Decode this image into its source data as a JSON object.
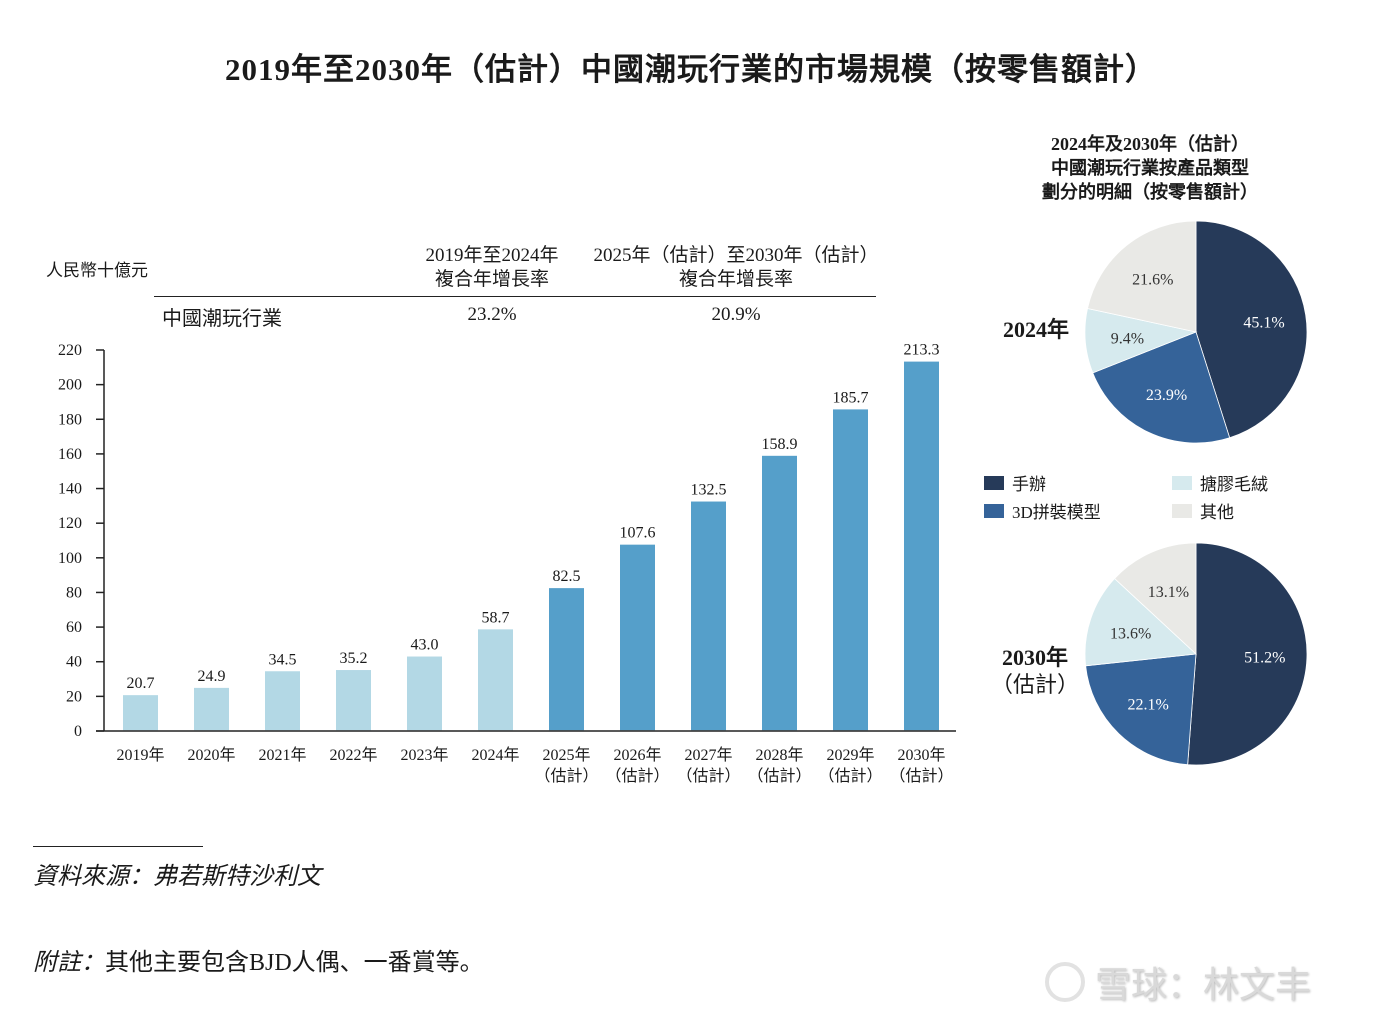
{
  "title": "2019年至2030年（估計）中國潮玩行業的市場規模（按零售額計）",
  "unit_label": "人民幣十億元",
  "cagr": {
    "header_1": [
      "2019年至2024年",
      "複合年增長率"
    ],
    "header_2": [
      "2025年（估計）至2030年（估計）",
      "複合年增長率"
    ],
    "row_label": "中國潮玩行業",
    "value_1": "23.2%",
    "value_2": "20.9%"
  },
  "colors": {
    "historical_bar": "#b3d8e5",
    "forecast_bar": "#559fca",
    "figurines": "#263a59",
    "model_3d": "#356399",
    "plush": "#d6eaee",
    "others": "#e9e9e6"
  },
  "chart_data": [
    {
      "type": "bar",
      "title": "2019年至2030年（估計）中國潮玩行業的市場規模（按零售額計）",
      "xlabel": "",
      "ylabel": "人民幣十億元",
      "ylim": [
        0,
        220
      ],
      "yticks": [
        0,
        20,
        40,
        60,
        80,
        100,
        120,
        140,
        160,
        180,
        200,
        220
      ],
      "grid": false,
      "categories": [
        "2019年",
        "2020年",
        "2021年",
        "2022年",
        "2023年",
        "2024年",
        "2025年\n（估計）",
        "2026年\n（估計）",
        "2027年\n（估計）",
        "2028年\n（估計）",
        "2029年\n（估計）",
        "2030年\n（估計）"
      ],
      "category_lines": [
        [
          "2019年"
        ],
        [
          "2020年"
        ],
        [
          "2021年"
        ],
        [
          "2022年"
        ],
        [
          "2023年"
        ],
        [
          "2024年"
        ],
        [
          "2025年",
          "（估計）"
        ],
        [
          "2026年",
          "（估計）"
        ],
        [
          "2027年",
          "（估計）"
        ],
        [
          "2028年",
          "（估計）"
        ],
        [
          "2029年",
          "（估計）"
        ],
        [
          "2030年",
          "（估計）"
        ]
      ],
      "values": [
        20.7,
        24.9,
        34.5,
        35.2,
        43.0,
        58.7,
        82.5,
        107.6,
        132.5,
        158.9,
        185.7,
        213.3
      ],
      "value_labels": [
        "20.7",
        "24.9",
        "34.5",
        "35.2",
        "43.0",
        "58.7",
        "82.5",
        "107.6",
        "132.5",
        "158.9",
        "185.7",
        "213.3"
      ],
      "forecast": [
        false,
        false,
        false,
        false,
        false,
        false,
        true,
        true,
        true,
        true,
        true,
        true
      ]
    },
    {
      "type": "pie",
      "title": "2024年及2030年（估計）中國潮玩行業按產品類型劃分的明細（按零售額計）",
      "title_lines": [
        "2024年及2030年（估計）",
        "中國潮玩行業按產品類型",
        "劃分的明細（按零售額計）"
      ],
      "legend": [
        "手辦",
        "3D拼裝模型",
        "搪膠毛絨",
        "其他"
      ],
      "legend_placement": "between-pies",
      "pies": [
        {
          "label": [
            "2024年"
          ],
          "slices": [
            {
              "name": "手辦",
              "value": 45.1,
              "label": "45.1%"
            },
            {
              "name": "3D拼裝模型",
              "value": 23.9,
              "label": "23.9%"
            },
            {
              "name": "搪膠毛絨",
              "value": 9.4,
              "label": "9.4%"
            },
            {
              "name": "其他",
              "value": 21.6,
              "label": "21.6%"
            }
          ]
        },
        {
          "label": [
            "2030年",
            "（估計）"
          ],
          "slices": [
            {
              "name": "手辦",
              "value": 51.2,
              "label": "51.2%"
            },
            {
              "name": "3D拼裝模型",
              "value": 22.1,
              "label": "22.1%"
            },
            {
              "name": "搪膠毛絨",
              "value": 13.6,
              "label": "13.6%"
            },
            {
              "name": "其他",
              "value": 13.1,
              "label": "13.1%"
            }
          ]
        }
      ]
    }
  ],
  "source_note": "資料來源：弗若斯特沙利文",
  "footnote": {
    "label": "附註：",
    "text": "其他主要包含BJD人偶、一番賞等。"
  },
  "watermark": "雪球：林文丰"
}
